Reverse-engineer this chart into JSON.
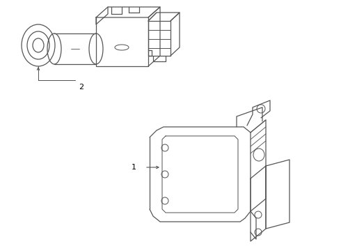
{
  "bg_color": "#ffffff",
  "line_color": "#555555",
  "label_color": "#000000",
  "figsize": [
    4.9,
    3.6
  ],
  "dpi": 100,
  "label1": "1",
  "label2": "2"
}
